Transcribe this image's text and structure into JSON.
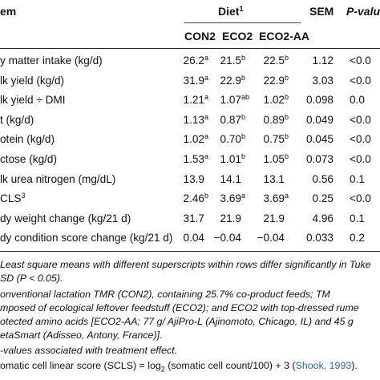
{
  "header": {
    "col_item": "em",
    "diet": "Diet",
    "diet_sup": "1",
    "sem": "SEM",
    "pvalue": "P-valu",
    "con2": "CON2",
    "eco2": "ECO2",
    "eco2aa": "ECO2-AA"
  },
  "rows": [
    {
      "label": "y matter intake (kg/d)",
      "con2": "26.2",
      "con2_sup": "a",
      "eco2": "21.5",
      "eco2_sup": "b",
      "eco2aa": "22.5",
      "eco2aa_sup": "b",
      "sem": "1.12",
      "p": "<0.0"
    },
    {
      "label": "lk yield (kg/d)",
      "con2": "31.9",
      "con2_sup": "a",
      "eco2": "22.9",
      "eco2_sup": "b",
      "eco2aa": "22.9",
      "eco2aa_sup": "b",
      "sem": "3.03",
      "p": "<0.0"
    },
    {
      "label": "lk yield ÷ DMI",
      "con2": "1.21",
      "con2_sup": "a",
      "eco2": "1.07",
      "eco2_sup": "ab",
      "eco2aa": "1.02",
      "eco2aa_sup": "b",
      "sem": "0.098",
      "p": "0.0"
    },
    {
      "label": "t (kg/d)",
      "con2": "1.13",
      "con2_sup": "a",
      "eco2": "0.87",
      "eco2_sup": "b",
      "eco2aa": "0.89",
      "eco2aa_sup": "b",
      "sem": "0.049",
      "p": "<0.0"
    },
    {
      "label": "otein (kg/d)",
      "con2": "1.02",
      "con2_sup": "a",
      "eco2": "0.70",
      "eco2_sup": "b",
      "eco2aa": "0.75",
      "eco2aa_sup": "b",
      "sem": "0.045",
      "p": "<0.0"
    },
    {
      "label": "ctose (kg/d)",
      "con2": "1.53",
      "con2_sup": "a",
      "eco2": "1.01",
      "eco2_sup": "b",
      "eco2aa": "1.05",
      "eco2aa_sup": "b",
      "sem": "0.073",
      "p": "<0.0"
    },
    {
      "label": "lk urea nitrogen (mg/dL)",
      "con2": "13.9",
      "con2_sup": "",
      "eco2": "14.1",
      "eco2_sup": "",
      "eco2aa": "13.1",
      "eco2aa_sup": "",
      "sem": "0.56",
      "p": "0.1"
    },
    {
      "label": "CLS",
      "label_sup": "3",
      "con2": "2.46",
      "con2_sup": "b",
      "eco2": "3.69",
      "eco2_sup": "a",
      "eco2aa": "3.69",
      "eco2aa_sup": "a",
      "sem": "0.25",
      "p": "<0.0"
    },
    {
      "label": "dy weight change (kg/21 d)",
      "con2": "31.7",
      "con2_sup": "",
      "eco2": "21.9",
      "eco2_sup": "",
      "eco2aa": "21.9",
      "eco2aa_sup": "",
      "sem": "4.96",
      "p": "0.1"
    },
    {
      "label": "dy condition score change (kg/21 d)",
      "con2": "0.04",
      "con2_sup": "",
      "eco2": "−0.04",
      "eco2_sup": "",
      "eco2aa": "−0.04",
      "eco2aa_sup": "",
      "sem": "0.033",
      "p": "0.2"
    }
  ],
  "footnotes": [
    "Least square means with different superscripts within rows differ significantly in Tuke",
    "SD (P < 0.05).",
    "onventional lactation TMR (CON2), containing 25.7% co-product feeds; TM",
    "mposed of ecological leftover feedstuff (ECO2); and ECO2 with top-dressed rume",
    "otected amino acids [ECO2-AA; 77 g/ AjiPro-L (Ajinomoto, Chicago, IL) and 45 g",
    "etaSmart (Adisseo, Antony, France)].",
    "-values associated with treatment effect.",
    "omatic cell linear score (SCLS) = log",
    "2",
    " (somatic cell count/100) + 3 (",
    "Shook, 1993",
    ")."
  ]
}
